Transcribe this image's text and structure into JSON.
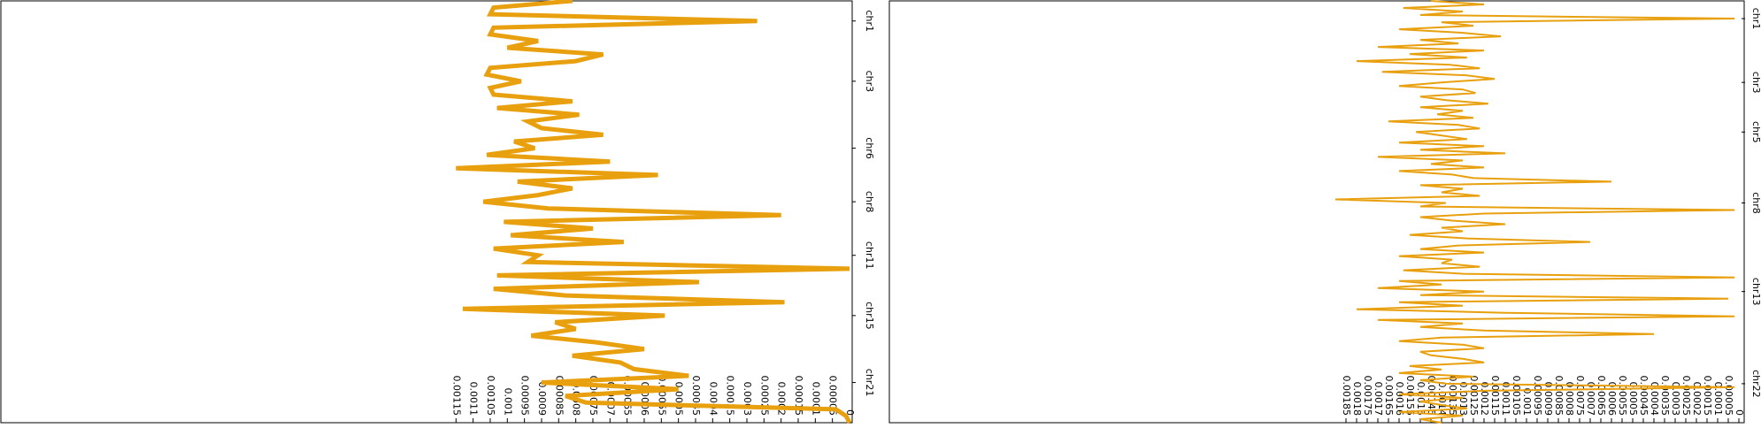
{
  "chart_data": [
    {
      "type": "line",
      "color": "#e8a00e",
      "values": [
        0.00081,
        0.00104,
        0.00105,
        0.00027,
        0.00104,
        0.00105,
        0.00091,
        0.001,
        0.00072,
        0.0008,
        0.00105,
        0.00106,
        0.00096,
        0.00105,
        0.00104,
        0.00081,
        0.00103,
        0.00079,
        0.00094,
        0.0009,
        0.00072,
        0.00098,
        0.00092,
        0.00106,
        0.0007,
        0.00115,
        0.00056,
        0.00097,
        0.00081,
        0.00091,
        0.00107,
        0.00088,
        0.0002,
        0.00101,
        0.00075,
        0.00099,
        0.00066,
        0.00104,
        0.00091,
        0.00094,
        0,
        0.00103,
        0.00044,
        0.00104,
        0.00083,
        0.00019,
        0.00113,
        0.00054,
        0.00086,
        0.0008,
        0.00093,
        0.00074,
        0.0006,
        0.00081,
        0.00067,
        0.00063,
        0.00047,
        0.0009,
        0.0005,
        0.00083,
        0.00077,
        4e-05,
        1e-05,
        0
      ],
      "xlim": [
        0,
        63
      ],
      "xticks": [
        {
          "value": 3,
          "label": "chr1"
        },
        {
          "value": 12,
          "label": "chr3"
        },
        {
          "value": 22,
          "label": "chr6"
        },
        {
          "value": 30,
          "label": "chr8"
        },
        {
          "value": 38,
          "label": "chr11"
        },
        {
          "value": 47,
          "label": "chr15"
        },
        {
          "value": 57,
          "label": "chr21"
        }
      ],
      "ylim": [
        0,
        0.00248
      ],
      "yticks": [
        0,
        5e-05,
        0.0001,
        0.00015,
        0.0002,
        0.00025,
        0.0003,
        0.00035,
        0.0004,
        0.00045,
        0.0005,
        0.00055,
        0.0006,
        0.00065,
        0.0007,
        0.00075,
        0.0008,
        0.00085,
        0.0009,
        0.00095,
        0.001,
        0.00105,
        0.0011,
        0.00115
      ]
    },
    {
      "type": "line",
      "color": "#e8a00e",
      "values": [
        0.00145,
        0.0012,
        0.00158,
        0.0013,
        0.0015,
        2e-05,
        0.0014,
        0.00125,
        0.0016,
        0.0013,
        0.00112,
        0.0015,
        0.00132,
        0.0017,
        0.0012,
        0.00155,
        0.00128,
        0.0018,
        0.00136,
        0.00122,
        0.00168,
        0.00128,
        0.00115,
        0.0014,
        0.0016,
        0.0013,
        0.00124,
        0.0015,
        0.00138,
        0.00118,
        0.0015,
        0.0013,
        0.00142,
        0.00125,
        0.00165,
        0.00132,
        0.00122,
        0.00152,
        0.0014,
        0.00128,
        0.0016,
        0.0012,
        0.0015,
        0.0011,
        0.0017,
        0.0013,
        0.00145,
        0.0012,
        0.0016,
        0.00135,
        0.00125,
        0.0006,
        0.0015,
        0.0013,
        0.0014,
        0.00122,
        0.0019,
        0.00138,
        0.0015,
        2e-05,
        0.0012,
        0.0015,
        0.00135,
        0.0011,
        0.0014,
        0.0013,
        0.00155,
        0.00128,
        0.0007,
        0.00132,
        0.0015,
        0.0012,
        0.0016,
        0.00135,
        0.0014,
        0.00122,
        0.00158,
        0.0013,
        2e-05,
        0.0016,
        0.0014,
        0.0017,
        0.0012,
        0.0015,
        5e-05,
        0.0016,
        0.0013,
        0.0018,
        0.0011,
        2e-05,
        0.0017,
        0.0013,
        0.0015,
        0.0012,
        0.0004,
        0.0014,
        0.0016,
        0.0013,
        0.0012,
        0.0015,
        0.00145,
        0.0013,
        0.0012,
        0.00155,
        0.0014,
        0.0016,
        0.00125,
        0.0015,
        0.00138,
        2e-05,
        0.0012,
        0.0016,
        0.0013,
        0.0015,
        0.0014,
        0.00128,
        0.0016,
        0.0013,
        0.0015,
        0.0014
      ],
      "xlim": [
        0,
        119
      ],
      "xticks": [
        {
          "value": 5,
          "label": "chr1"
        },
        {
          "value": 23,
          "label": "chr3"
        },
        {
          "value": 37,
          "label": "chr5"
        },
        {
          "value": 57,
          "label": "chr8"
        },
        {
          "value": 82,
          "label": "chr13"
        },
        {
          "value": 108,
          "label": "chr22"
        }
      ],
      "ylim": [
        0,
        0.004
      ],
      "yticks": [
        0,
        5e-05,
        0.0001,
        0.00015,
        0.0002,
        0.00025,
        0.0003,
        0.00035,
        0.0004,
        0.00045,
        0.0005,
        0.00055,
        0.0006,
        0.00065,
        0.0007,
        0.00075,
        0.0008,
        0.00085,
        0.0009,
        0.00095,
        0.001,
        0.00105,
        0.0011,
        0.00115,
        0.0012,
        0.00125,
        0.0013,
        0.00135,
        0.0014,
        0.00145,
        0.0015,
        0.00155,
        0.0016,
        0.00165,
        0.0017,
        0.00175,
        0.0018,
        0.00185
      ]
    }
  ]
}
